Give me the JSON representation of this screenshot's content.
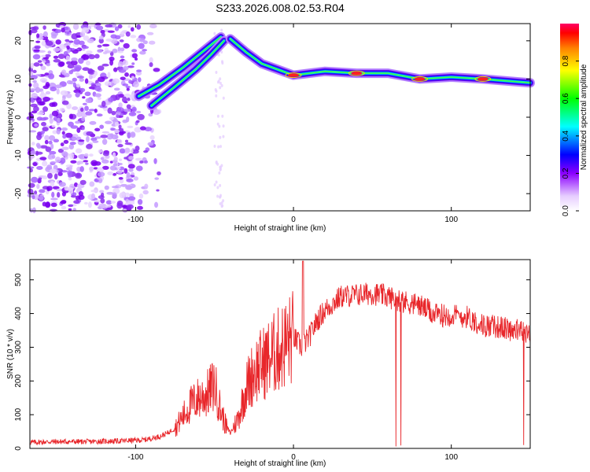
{
  "title": "S233.2026.008.02.53.R04",
  "chart_data": [
    {
      "type": "heatmap",
      "xlabel": "Height of straight line (km)",
      "ylabel": "Frequency (Hz)",
      "xlim": [
        -167,
        150
      ],
      "ylim": [
        -24.5,
        24.5
      ],
      "xticks": [
        -100,
        0,
        100
      ],
      "yticks": [
        -20,
        -10,
        0,
        10,
        20
      ],
      "colorbar": {
        "label": "Normalized spectral amplitude",
        "range": [
          0.0,
          1.0
        ],
        "ticks": [
          0.0,
          0.2,
          0.4,
          0.6,
          0.8
        ],
        "colors": [
          "#ffffff",
          "#e6ccff",
          "#8c00ff",
          "#0000ff",
          "#00ffff",
          "#00ff00",
          "#ffff00",
          "#ff8000",
          "#ff0000"
        ]
      },
      "ridges": [
        {
          "points": [
            [
              -98,
              5.5
            ],
            [
              -85,
              8.5
            ],
            [
              -70,
              13
            ],
            [
              -55,
              18
            ],
            [
              -46,
              21
            ]
          ]
        },
        {
          "points": [
            [
              -90,
              3
            ],
            [
              -75,
              8
            ],
            [
              -62,
              12.5
            ],
            [
              -52,
              16.5
            ],
            [
              -44,
              20
            ]
          ]
        },
        {
          "points": [
            [
              -40,
              20.5
            ],
            [
              -30,
              17
            ],
            [
              -20,
              14
            ],
            [
              -10,
              12.5
            ],
            [
              0,
              11
            ],
            [
              20,
              12
            ],
            [
              40,
              11.5
            ],
            [
              60,
              11.5
            ],
            [
              80,
              10
            ],
            [
              100,
              10.5
            ],
            [
              120,
              10
            ],
            [
              150,
              9
            ]
          ]
        }
      ]
    },
    {
      "type": "line",
      "xlabel": "Height of straight line (km)",
      "ylabel": "SNR (10 * v/v)",
      "xlim": [
        -167,
        150
      ],
      "ylim": [
        0,
        560
      ],
      "xticks": [
        -100,
        0,
        100
      ],
      "yticks": [
        0,
        100,
        200,
        300,
        400,
        500
      ],
      "color": "#e8262a",
      "x": [
        -167,
        -150,
        -130,
        -110,
        -95,
        -85,
        -80,
        -75,
        -70,
        -65,
        -60,
        -55,
        -50,
        -46,
        -43,
        -40,
        -35,
        -30,
        -25,
        -20,
        -15,
        -10,
        -5,
        0,
        5,
        10,
        15,
        20,
        25,
        30,
        40,
        50,
        60,
        70,
        80,
        90,
        100,
        110,
        120,
        130,
        140,
        150
      ],
      "y": [
        18,
        20,
        20,
        22,
        25,
        35,
        45,
        60,
        95,
        130,
        150,
        160,
        190,
        110,
        70,
        45,
        90,
        180,
        230,
        250,
        270,
        290,
        310,
        330,
        300,
        330,
        380,
        410,
        430,
        450,
        455,
        460,
        450,
        435,
        425,
        395,
        395,
        390,
        365,
        360,
        350,
        345
      ]
    }
  ]
}
